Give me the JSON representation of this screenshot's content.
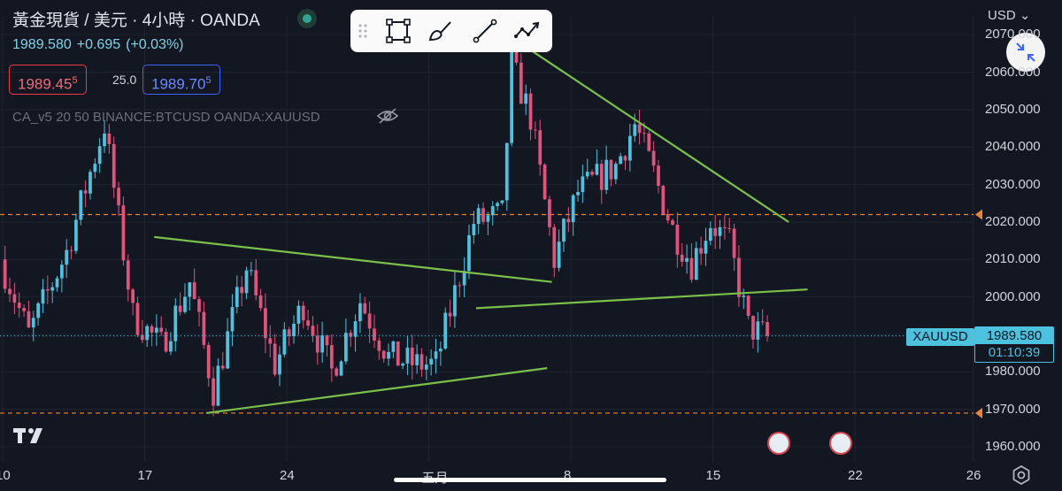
{
  "header": {
    "title": "黃金現貨 / 美元 · 4小時 · OANDA",
    "last": "1989.580",
    "change": "+0.695",
    "change_pct": "(+0.03%)",
    "bid_main": "1989.45",
    "bid_tail": "5",
    "spread": "25.0",
    "ask_main": "1989.70",
    "ask_tail": "5",
    "indicators": "CA_v5 20 50 BINANCE:BTCUSD OANDA:XAUUSD"
  },
  "toolbar": {
    "tools": [
      "drag-handle-icon",
      "rectangle-icon",
      "brush-icon",
      "trend-line-icon",
      "path-icon"
    ]
  },
  "axis_currency": "USD",
  "last_price_tag": {
    "ticker": "XAUUSD",
    "price": "1989.580",
    "countdown": "01:10:39"
  },
  "colors": {
    "background": "#131722",
    "up": "#4cc2de",
    "down": "#e0537a",
    "trendline": "#7bc04a",
    "level": "#f0842a",
    "grid": "#1f2330"
  },
  "chart_data": {
    "type": "candlestick",
    "symbol": "XAUUSD",
    "timeframe": "4H",
    "ylim": [
      1956,
      2075
    ],
    "y_ticks": [
      "1960.000",
      "1970.000",
      "1980.000",
      "1990.000",
      "2000.000",
      "2010.000",
      "2020.000",
      "2030.000",
      "2040.000",
      "2050.000",
      "2060.000",
      "2070.000"
    ],
    "x_ticks": [
      {
        "label": "10",
        "bar": 0
      },
      {
        "label": "17",
        "bar": 30
      },
      {
        "label": "24",
        "bar": 60
      },
      {
        "label": "五月",
        "bar": 90
      },
      {
        "label": "8",
        "bar": 120
      },
      {
        "label": "15",
        "bar": 150
      },
      {
        "label": "22",
        "bar": 180
      },
      {
        "label": "26",
        "bar": 205
      }
    ],
    "last_price": 1989.58,
    "horizontal_levels": [
      2022,
      1969
    ],
    "trend_lines": [
      {
        "from": [
          32,
          2016
        ],
        "to": [
          116,
          2004
        ]
      },
      {
        "from": [
          43,
          1969
        ],
        "to": [
          115,
          1981
        ]
      },
      {
        "from": [
          100,
          1997
        ],
        "to": [
          170,
          2002
        ]
      },
      {
        "from": [
          109,
          2068
        ],
        "to": [
          166,
          2020
        ]
      }
    ],
    "earnings_flags": [
      164,
      177
    ],
    "bar_count": 162,
    "anchor_path": [
      [
        0,
        2010
      ],
      [
        6,
        1990
      ],
      [
        14,
        2012
      ],
      [
        22,
        2046
      ],
      [
        28,
        1995
      ],
      [
        34,
        1987
      ],
      [
        40,
        2004
      ],
      [
        45,
        1975
      ],
      [
        52,
        2008
      ],
      [
        58,
        1982
      ],
      [
        64,
        1998
      ],
      [
        70,
        1980
      ],
      [
        76,
        1999
      ],
      [
        82,
        1984
      ],
      [
        88,
        1982
      ],
      [
        92,
        1982
      ],
      [
        100,
        2020
      ],
      [
        106,
        2022
      ],
      [
        108,
        2062
      ],
      [
        112,
        2048
      ],
      [
        117,
        2010
      ],
      [
        122,
        2028
      ],
      [
        130,
        2035
      ],
      [
        134,
        2046
      ],
      [
        138,
        2033
      ],
      [
        142,
        2018
      ],
      [
        146,
        2009
      ],
      [
        150,
        2020
      ],
      [
        154,
        2014
      ],
      [
        158,
        1992
      ],
      [
        161,
        1990
      ]
    ]
  }
}
